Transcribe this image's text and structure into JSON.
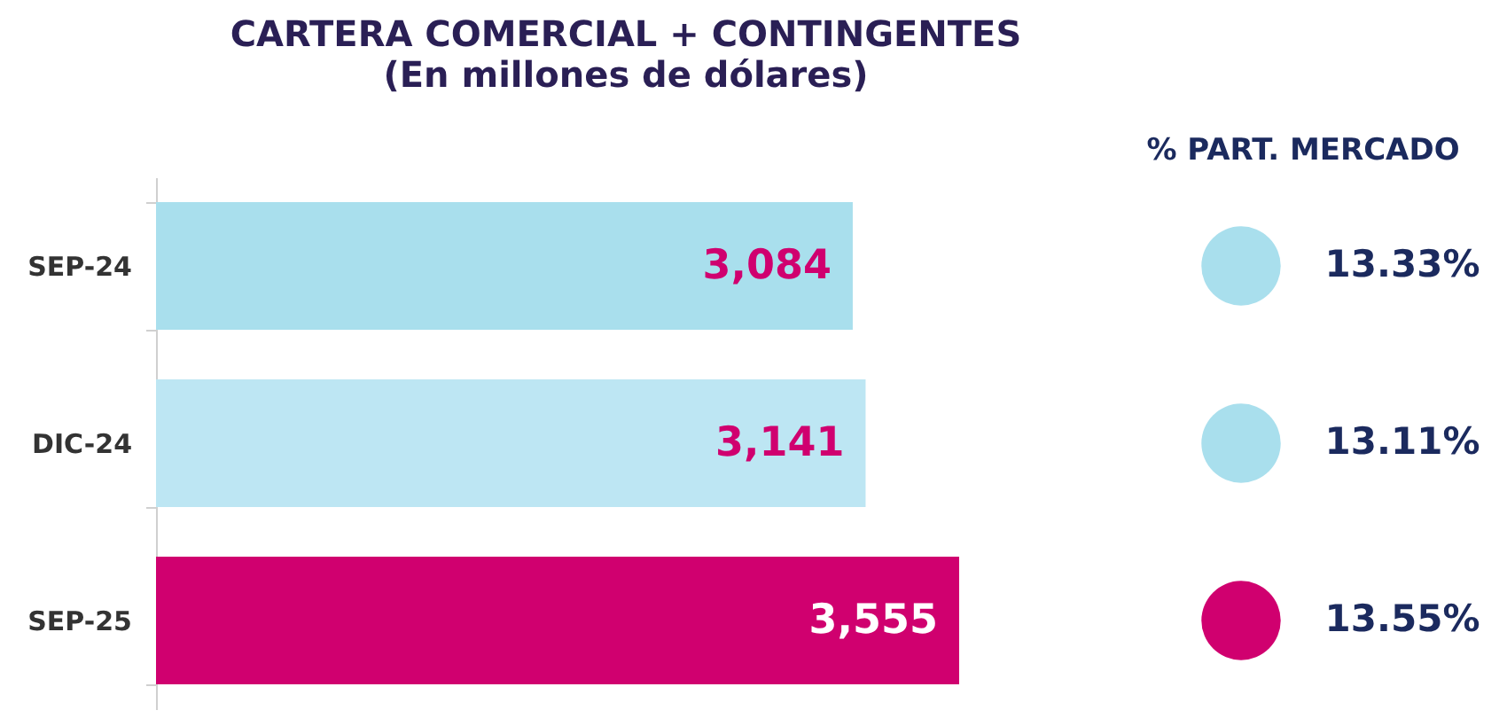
{
  "chart_data": [
    {
      "type": "bar",
      "title": "CARTERA COMERCIAL + CONTINGENTES",
      "subtitle": "(En millones de dólares)",
      "orientation": "horizontal",
      "categories": [
        "SEP-24",
        "DIC-24",
        "SEP-25"
      ],
      "values": [
        3084,
        3141,
        3555
      ],
      "colors": [
        "#a9dfed",
        "#bde6f3",
        "#d0006f"
      ],
      "value_labels": [
        "3,084",
        "3,141",
        "3,555"
      ]
    },
    {
      "type": "other",
      "title": "% PART. MERCADO",
      "values": [
        13.33,
        13.11,
        13.55
      ],
      "colors": [
        "#a9dfed",
        "#a9dfed",
        "#d0006f"
      ],
      "value_labels": [
        "13.33%",
        "13.11%",
        "13.55%"
      ]
    }
  ]
}
